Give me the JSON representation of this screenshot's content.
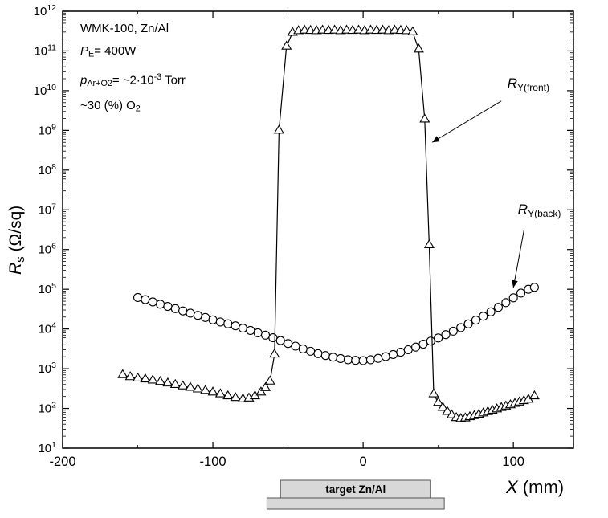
{
  "figure": {
    "background": "#ffffff",
    "accent_color": "#000000",
    "marker_fill": "#ffffff",
    "target_fill": "#d8d8d8",
    "target_stroke": "#555555"
  },
  "chart_data": {
    "type": "line",
    "title": "",
    "xlabel": "X (mm)",
    "ylabel": "Rs (Ohm/sq)",
    "xlabel_segments": [
      {
        "t": "X",
        "i": true
      },
      {
        "t": " (mm)"
      }
    ],
    "ylabel_segments": [
      {
        "t": "R",
        "i": true
      },
      {
        "t": "s",
        "sub": true
      },
      {
        "t": " (Ω/sq)"
      }
    ],
    "xlim": [
      -200,
      140
    ],
    "ylim": [
      10,
      1000000000000.0
    ],
    "ylog": true,
    "x_ticks": [
      -200,
      -100,
      0,
      100
    ],
    "x_minor_ticks": [
      -150,
      -50,
      50
    ],
    "y_ticks": {
      "prefix": "10",
      "exponents": [
        1,
        2,
        3,
        4,
        5,
        6,
        7,
        8,
        9,
        10,
        11,
        12
      ]
    },
    "grid": false,
    "legend_position": "inline-annotations",
    "info_lines": [
      [
        {
          "t": "WMK-100, Zn/Al"
        }
      ],
      [
        {
          "t": "P",
          "i": true
        },
        {
          "t": "E",
          "sub": true
        },
        {
          "t": "= 400W"
        }
      ],
      [
        {
          "t": "p",
          "i": true
        },
        {
          "t": "Ar+O2",
          "sub": true
        },
        {
          "t": "= ~2·10"
        },
        {
          "t": "-3",
          "sup": true
        },
        {
          "t": " Torr"
        }
      ],
      [
        {
          "t": "~30 (%) O"
        },
        {
          "t": "2",
          "sub": true
        }
      ]
    ],
    "series": [
      {
        "id": "back",
        "name": "R_Y(back)",
        "marker": "circle",
        "points": [
          [
            -150,
            62000
          ],
          [
            -145,
            55000
          ],
          [
            -140,
            48000
          ],
          [
            -135,
            42000
          ],
          [
            -130,
            37000
          ],
          [
            -125,
            32500
          ],
          [
            -120,
            28500
          ],
          [
            -115,
            25000
          ],
          [
            -110,
            22000
          ],
          [
            -105,
            19500
          ],
          [
            -100,
            17000
          ],
          [
            -95,
            15000
          ],
          [
            -90,
            13500
          ],
          [
            -85,
            12000
          ],
          [
            -80,
            10500
          ],
          [
            -75,
            9200
          ],
          [
            -70,
            8000
          ],
          [
            -65,
            7000
          ],
          [
            -60,
            6000
          ],
          [
            -55,
            5100
          ],
          [
            -50,
            4300
          ],
          [
            -45,
            3700
          ],
          [
            -40,
            3150
          ],
          [
            -35,
            2750
          ],
          [
            -30,
            2400
          ],
          [
            -25,
            2150
          ],
          [
            -20,
            1950
          ],
          [
            -15,
            1800
          ],
          [
            -10,
            1680
          ],
          [
            -5,
            1620
          ],
          [
            0,
            1600
          ],
          [
            5,
            1680
          ],
          [
            10,
            1820
          ],
          [
            15,
            2020
          ],
          [
            20,
            2280
          ],
          [
            25,
            2600
          ],
          [
            30,
            3000
          ],
          [
            35,
            3500
          ],
          [
            40,
            4150
          ],
          [
            45,
            4950
          ],
          [
            50,
            5950
          ],
          [
            55,
            7200
          ],
          [
            60,
            8800
          ],
          [
            65,
            10800
          ],
          [
            70,
            13400
          ],
          [
            75,
            16700
          ],
          [
            80,
            21000
          ],
          [
            85,
            27000
          ],
          [
            90,
            35000
          ],
          [
            95,
            46000
          ],
          [
            100,
            61000
          ],
          [
            105,
            80000
          ],
          [
            110,
            100000
          ],
          [
            114,
            112000
          ]
        ]
      },
      {
        "id": "front",
        "name": "R_Y(front)",
        "marker": "triangle",
        "points": [
          [
            -160,
            700
          ],
          [
            -155,
            620
          ],
          [
            -150,
            575
          ],
          [
            -145,
            545
          ],
          [
            -140,
            510
          ],
          [
            -135,
            470
          ],
          [
            -130,
            430
          ],
          [
            -125,
            395
          ],
          [
            -120,
            365
          ],
          [
            -115,
            335
          ],
          [
            -110,
            305
          ],
          [
            -105,
            280
          ],
          [
            -100,
            255
          ],
          [
            -95,
            230
          ],
          [
            -90,
            205
          ],
          [
            -85,
            185
          ],
          [
            -80,
            172
          ],
          [
            -76,
            180
          ],
          [
            -72,
            205
          ],
          [
            -68,
            255
          ],
          [
            -65,
            330
          ],
          [
            -62,
            480
          ],
          [
            -59,
            2300
          ],
          [
            -56,
            1000000000.0
          ],
          [
            -51,
            130000000000.0
          ],
          [
            -47,
            290000000000.0
          ],
          [
            -43,
            320000000000.0
          ],
          [
            -39,
            330000000000.0
          ],
          [
            -35,
            325000000000.0
          ],
          [
            -31,
            320000000000.0
          ],
          [
            -27,
            330000000000.0
          ],
          [
            -23,
            325000000000.0
          ],
          [
            -19,
            330000000000.0
          ],
          [
            -15,
            320000000000.0
          ],
          [
            -11,
            330000000000.0
          ],
          [
            -7,
            325000000000.0
          ],
          [
            -3,
            330000000000.0
          ],
          [
            1,
            320000000000.0
          ],
          [
            5,
            330000000000.0
          ],
          [
            9,
            325000000000.0
          ],
          [
            13,
            330000000000.0
          ],
          [
            17,
            320000000000.0
          ],
          [
            21,
            330000000000.0
          ],
          [
            25,
            325000000000.0
          ],
          [
            29,
            320000000000.0
          ],
          [
            33,
            300000000000.0
          ],
          [
            37,
            110000000000.0
          ],
          [
            41,
            1900000000.0
          ],
          [
            44,
            1300000.0
          ],
          [
            47,
            230
          ],
          [
            50,
            140
          ],
          [
            53,
            105
          ],
          [
            56,
            83
          ],
          [
            59,
            68
          ],
          [
            62,
            58
          ],
          [
            65,
            55
          ],
          [
            68,
            57
          ],
          [
            71,
            61
          ],
          [
            74,
            65
          ],
          [
            77,
            70
          ],
          [
            80,
            76
          ],
          [
            83,
            82
          ],
          [
            86,
            89
          ],
          [
            89,
            96
          ],
          [
            92,
            104
          ],
          [
            95,
            113
          ],
          [
            98,
            122
          ],
          [
            101,
            132
          ],
          [
            104,
            143
          ],
          [
            107,
            155
          ],
          [
            110,
            168
          ],
          [
            114,
            205
          ]
        ]
      }
    ],
    "annotations": [
      {
        "name": "front",
        "segments": [
          {
            "t": "R",
            "i": true
          },
          {
            "t": "Y(front)",
            "sub": true
          }
        ],
        "x": 96,
        "y": 12000000000.0,
        "arrow": [
          92,
          5500000000.0,
          46,
          500000000.0
        ]
      },
      {
        "name": "back",
        "segments": [
          {
            "t": "R",
            "i": true
          },
          {
            "t": "Y(back)",
            "sub": true
          }
        ],
        "x": 103,
        "y": 8000000.0,
        "arrow": [
          107,
          3000000.0,
          100,
          110000.0
        ]
      }
    ],
    "target": {
      "label": "target Zn/Al",
      "bar_top_x": [
        -55,
        45
      ],
      "bar_bottom_x": [
        -64,
        54
      ]
    }
  }
}
